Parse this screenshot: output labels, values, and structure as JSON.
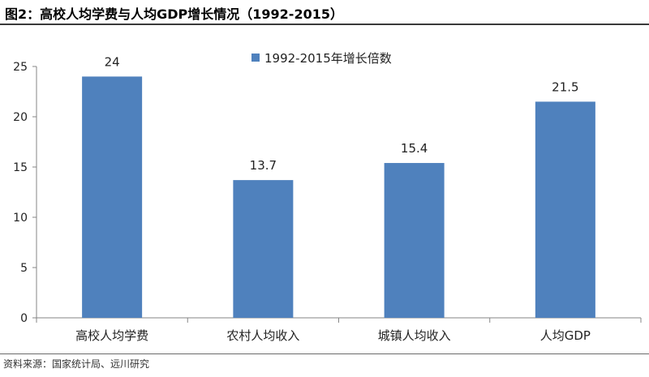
{
  "header": {
    "title": "图2：高校人均学费与人均GDP增长情况（1992-2015）"
  },
  "footer": {
    "source": "资料来源：国家统计局、远川研究"
  },
  "chart_data": {
    "type": "bar",
    "categories": [
      "高校人均学费",
      "农村人均收入",
      "城镇人均收入",
      "人均GDP"
    ],
    "series": [
      {
        "name": "1992-2015年增长倍数",
        "values": [
          24,
          13.7,
          15.4,
          21.5
        ]
      }
    ],
    "data_labels": [
      "24",
      "13.7",
      "15.4",
      "21.5"
    ],
    "title": "图2：高校人均学费与人均GDP增长情况（1992-2015）",
    "xlabel": "",
    "ylabel": "",
    "ylim": [
      0,
      25
    ],
    "yticks": [
      0,
      5,
      10,
      15,
      20,
      25
    ],
    "grid": false,
    "legend": "top-center",
    "colors": {
      "bar": "#4F81BD",
      "axis": "#868686"
    }
  }
}
